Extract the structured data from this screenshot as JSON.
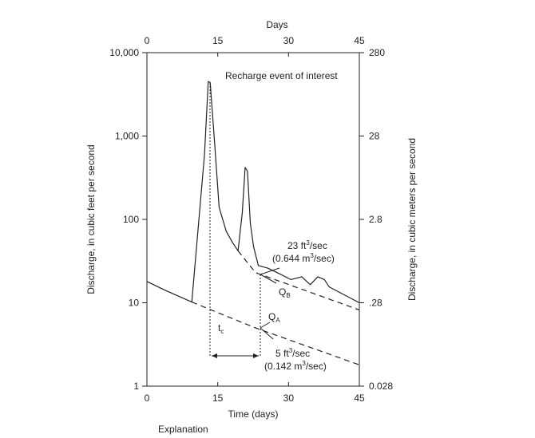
{
  "chart_data": {
    "type": "line",
    "title": "",
    "x_axis": {
      "label": "Time (days)",
      "range": [
        0,
        45
      ],
      "ticks": [
        0,
        15,
        30,
        45
      ],
      "top_label": "Days",
      "top_ticks": [
        0,
        15,
        30,
        45
      ]
    },
    "y_axis_left": {
      "label": "Discharge, in cubic feet per second",
      "scale": "log",
      "range": [
        1,
        10000
      ],
      "ticks": [
        1,
        10,
        100,
        1000,
        10000
      ],
      "tick_labels": [
        "1",
        "10",
        "100",
        "1,000",
        "10,000"
      ]
    },
    "y_axis_right": {
      "label": "Discharge, in cubic meters per second",
      "scale": "log",
      "tick_labels": [
        "0.028",
        ".28",
        "2.8",
        "28",
        "280"
      ]
    },
    "series": [
      {
        "style": "solid",
        "points": [
          [
            0,
            18.0
          ],
          [
            4,
            14.0
          ],
          [
            9.5,
            10.2
          ],
          [
            12.2,
            600
          ],
          [
            13,
            4500
          ],
          [
            13.4,
            4400
          ],
          [
            14.3,
            900
          ],
          [
            15.3,
            140
          ],
          [
            16.8,
            72
          ],
          [
            18.2,
            52
          ],
          [
            19.3,
            42
          ],
          [
            20.2,
            120
          ],
          [
            20.8,
            420
          ],
          [
            21.3,
            380
          ],
          [
            21.9,
            90
          ],
          [
            22.6,
            47
          ],
          [
            23.6,
            28
          ],
          [
            25.6,
            26.0
          ],
          [
            27.6,
            23.0
          ],
          [
            30.5,
            19.0
          ],
          [
            32.8,
            20.5
          ],
          [
            34.6,
            16.5
          ],
          [
            36.2,
            20.5
          ],
          [
            37.6,
            19.0
          ],
          [
            38.6,
            15.5
          ],
          [
            45,
            10.0
          ]
        ]
      },
      {
        "style": "dashed",
        "points": [
          [
            9.5,
            10.2
          ],
          [
            23,
            5.0
          ],
          [
            45,
            1.8
          ]
        ]
      },
      {
        "style": "dashed",
        "points": [
          [
            19.3,
            42
          ],
          [
            23,
            23
          ],
          [
            45,
            8.2
          ]
        ]
      }
    ],
    "annotations": {
      "event": "Recharge event of interest",
      "tc_label": "t",
      "tc_sub": "c",
      "qa_label": "Q",
      "qa_sub": "A",
      "qb_label": "Q",
      "qb_sub": "B",
      "qb_ft_pre": "23 ft",
      "qb_ft_sup": "3",
      "qb_ft_post": "/sec",
      "qb_m_pre": "(0.644 m",
      "qb_m_sup": "3",
      "qb_m_post": "/sec)",
      "qa_ft_pre": "5 ft",
      "qa_ft_sup": "3",
      "qa_ft_post": "/sec",
      "qa_m_pre": "(0.142 m",
      "qa_m_sup": "3",
      "qa_m_post": "/sec)"
    },
    "footer": "Explanation"
  }
}
